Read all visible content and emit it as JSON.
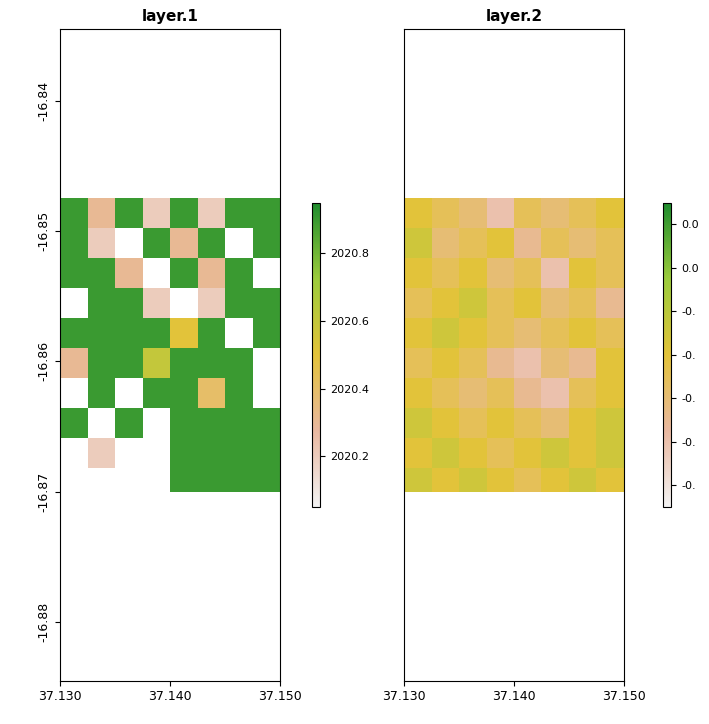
{
  "chart_data": [
    {
      "type": "heatmap",
      "title": "layer.1",
      "x_edges": [
        37.13,
        37.1325,
        37.135,
        37.1375,
        37.14,
        37.1425,
        37.145,
        37.1475,
        37.15
      ],
      "y_edges": [
        -16.8475,
        -16.8498,
        -16.8521,
        -16.8544,
        -16.8567,
        -16.859,
        -16.8613,
        -16.8636,
        -16.8659,
        -16.8682,
        -16.87
      ],
      "cells": [
        [
          2020.9,
          2020.3,
          2020.9,
          2020.2,
          2020.9,
          2020.2,
          2020.9,
          2020.9
        ],
        [
          2020.9,
          2020.2,
          null,
          2020.9,
          2020.3,
          2020.9,
          null,
          2020.9
        ],
        [
          2020.9,
          2020.9,
          2020.3,
          null,
          2020.9,
          2020.3,
          2020.9,
          null
        ],
        [
          null,
          2020.9,
          2020.9,
          2020.2,
          null,
          2020.2,
          2020.9,
          2020.9
        ],
        [
          2020.9,
          2020.9,
          2020.9,
          2020.9,
          2020.5,
          2020.9,
          null,
          2020.9
        ],
        [
          2020.3,
          2020.9,
          2020.9,
          2020.6,
          2020.9,
          2020.9,
          2020.9,
          null
        ],
        [
          null,
          2020.9,
          null,
          2020.9,
          2020.9,
          2020.4,
          2020.9,
          null
        ],
        [
          2020.9,
          null,
          2020.9,
          null,
          2020.9,
          2020.9,
          2020.9,
          2020.9
        ],
        [
          null,
          2020.2,
          null,
          null,
          2020.9,
          2020.9,
          2020.9,
          2020.9
        ],
        [
          null,
          null,
          null,
          null,
          2020.9,
          2020.9,
          2020.9,
          2020.9
        ]
      ],
      "color_range": [
        2020.05,
        2020.95
      ],
      "color_ticks": [
        2020.2,
        2020.4,
        2020.6,
        2020.8
      ],
      "xlim": [
        37.13,
        37.15
      ],
      "xticks": [
        {
          "value": 37.13,
          "label": "37.130"
        },
        {
          "value": 37.14,
          "label": "37.140"
        },
        {
          "value": 37.15,
          "label": "37.150"
        }
      ],
      "ylim": [
        -16.8845,
        -16.8345
      ],
      "yticks": [
        -16.84,
        -16.85,
        -16.86,
        -16.87,
        -16.88
      ],
      "tick_labels": true
    },
    {
      "type": "heatmap",
      "title": "layer.2",
      "x_edges": [
        37.13,
        37.1325,
        37.135,
        37.1375,
        37.14,
        37.1425,
        37.145,
        37.1475,
        37.15
      ],
      "y_edges": [
        -16.8475,
        -16.8498,
        -16.8521,
        -16.8544,
        -16.8567,
        -16.859,
        -16.8613,
        -16.8636,
        -16.8659,
        -16.8682,
        -16.87
      ],
      "cells": [
        [
          -0.04,
          -0.05,
          -0.06,
          -0.08,
          -0.05,
          -0.06,
          -0.05,
          -0.04
        ],
        [
          -0.03,
          -0.06,
          -0.05,
          -0.04,
          -0.07,
          -0.05,
          -0.06,
          -0.05
        ],
        [
          -0.04,
          -0.05,
          -0.04,
          -0.06,
          -0.05,
          -0.08,
          -0.04,
          -0.05
        ],
        [
          -0.05,
          -0.04,
          -0.03,
          -0.05,
          -0.04,
          -0.06,
          -0.05,
          -0.07
        ],
        [
          -0.04,
          -0.03,
          -0.04,
          -0.05,
          -0.06,
          -0.05,
          -0.04,
          -0.05
        ],
        [
          -0.05,
          -0.04,
          -0.05,
          -0.07,
          -0.08,
          -0.06,
          -0.07,
          -0.04
        ],
        [
          -0.04,
          -0.05,
          -0.06,
          -0.05,
          -0.07,
          -0.08,
          -0.05,
          -0.04
        ],
        [
          -0.03,
          -0.04,
          -0.05,
          -0.04,
          -0.05,
          -0.06,
          -0.04,
          -0.03
        ],
        [
          -0.04,
          -0.03,
          -0.04,
          -0.05,
          -0.04,
          -0.03,
          -0.04,
          -0.03
        ],
        [
          -0.03,
          -0.04,
          -0.03,
          -0.04,
          -0.05,
          -0.04,
          -0.03,
          -0.04
        ]
      ],
      "color_range": [
        -0.11,
        0.03
      ],
      "color_ticks": [
        {
          "value": 0.02,
          "label": "0.0"
        },
        {
          "value": 0.0,
          "label": "0.0"
        },
        {
          "value": -0.02,
          "label": "-0."
        },
        {
          "value": -0.04,
          "label": "-0."
        },
        {
          "value": -0.06,
          "label": "-0."
        },
        {
          "value": -0.08,
          "label": "-0."
        },
        {
          "value": -0.1,
          "label": "-0."
        }
      ],
      "xlim": [
        37.13,
        37.15
      ],
      "xticks": [
        {
          "value": 37.13,
          "label": "37.130"
        },
        {
          "value": 37.14,
          "label": "37.140"
        },
        {
          "value": 37.15,
          "label": "37.150"
        }
      ],
      "ylim": [
        -16.8845,
        -16.8345
      ],
      "yticks": [
        -16.84,
        -16.85,
        -16.86,
        -16.87,
        -16.88
      ],
      "tick_labels": "x"
    }
  ]
}
